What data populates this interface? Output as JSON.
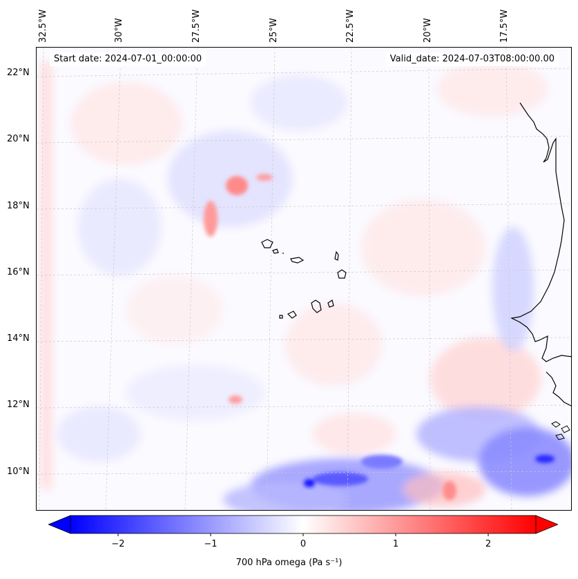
{
  "map": {
    "start_date": "Start date: 2024-07-01_00:00:00",
    "valid_date": "Valid_date: 2024-07-03T08:00:00.00",
    "lon_labels": [
      "32.5°W",
      "30°W",
      "27.5°W",
      "25°W",
      "22.5°W",
      "20°W",
      "17.5°W"
    ],
    "lat_labels": [
      "22°N",
      "20°N",
      "18°N",
      "16°N",
      "14°N",
      "12°N",
      "10°N"
    ],
    "field": "700 hPa omega",
    "colors": {
      "negative": "#0000ff",
      "zero": "#ffffff",
      "positive": "#ff0000",
      "coastline": "#000000"
    }
  },
  "colorbar": {
    "label": "700 hPa omega (Pa s⁻¹)",
    "ticks": [
      "−2",
      "−1",
      "0",
      "1",
      "2"
    ],
    "range": [
      -2.6,
      2.6
    ]
  }
}
